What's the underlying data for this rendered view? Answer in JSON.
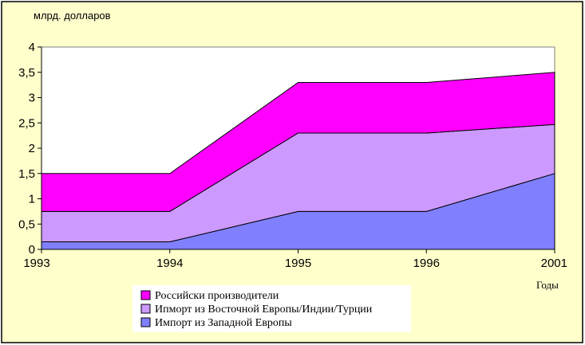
{
  "chart_data": {
    "type": "area",
    "stacked": true,
    "ylabel": "млрд. долларов",
    "xlabel": "Годы",
    "categories": [
      "1993",
      "1994",
      "1995",
      "1996",
      "2001"
    ],
    "ylim": [
      0,
      4
    ],
    "yticks": [
      "0",
      "0,5",
      "1",
      "1,5",
      "2",
      "2,5",
      "3",
      "3,5",
      "4"
    ],
    "ytick_values": [
      0,
      0.5,
      1,
      1.5,
      2,
      2.5,
      3,
      3.5,
      4
    ],
    "grid": false,
    "legend_position": "bottom",
    "series": [
      {
        "name": "Импорт из Западной Европы",
        "color": "#8080ff",
        "values": [
          0.15,
          0.15,
          0.75,
          0.75,
          1.5
        ]
      },
      {
        "name": "Ипморт из Восточной Европы/Индии/Турции",
        "color": "#cc99ff",
        "values": [
          0.6,
          0.6,
          1.55,
          1.55,
          0.97
        ]
      },
      {
        "name": "Российски производители",
        "color": "#ff00ff",
        "values": [
          0.75,
          0.75,
          1.0,
          1.0,
          1.03
        ]
      }
    ],
    "legend_order": [
      2,
      1,
      0
    ],
    "background_color": "#ffffcc",
    "plot_background_color": "#ffffff"
  }
}
